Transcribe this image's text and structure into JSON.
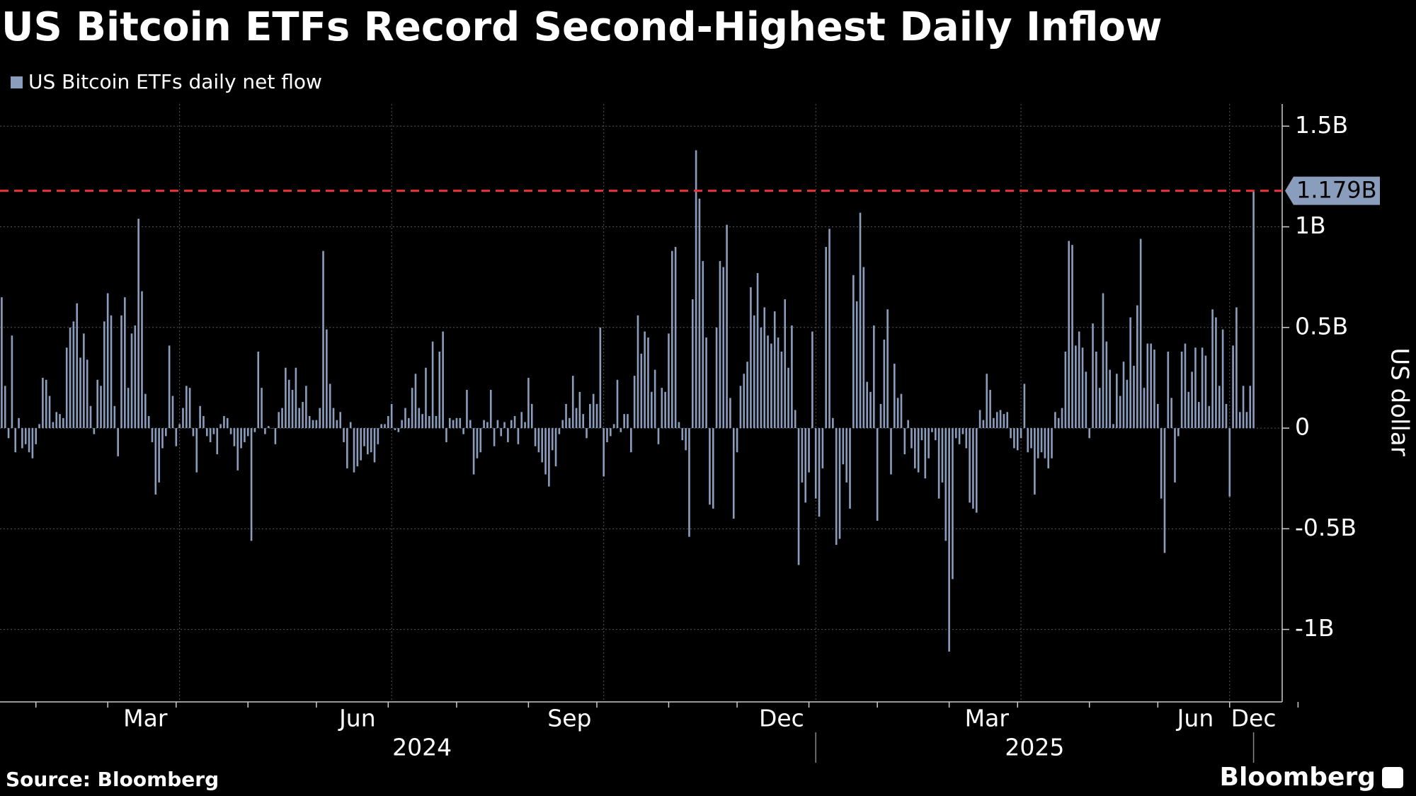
{
  "chart_data": {
    "type": "bar",
    "title": "US Bitcoin ETFs Record Second-Highest Daily Inflow",
    "series": [
      {
        "name": "US Bitcoin ETFs daily net flow",
        "color": "#8a9dbd",
        "values": [
          0.65,
          0.21,
          -0.05,
          0.46,
          -0.12,
          0.05,
          -0.1,
          -0.08,
          -0.12,
          -0.15,
          -0.08,
          0.02,
          0.25,
          0.24,
          0.16,
          0.03,
          0.08,
          0.07,
          0.05,
          0.4,
          0.5,
          0.53,
          0.62,
          0.35,
          0.47,
          0.34,
          0.11,
          -0.03,
          0.24,
          0.21,
          0.53,
          0.67,
          0.56,
          0.11,
          -0.14,
          0.56,
          0.65,
          0.2,
          0.47,
          0.51,
          1.04,
          0.68,
          0.17,
          0.06,
          -0.07,
          -0.33,
          -0.27,
          -0.1,
          -0.04,
          0.41,
          0.16,
          -0.09,
          0.02,
          0.1,
          0.21,
          0.2,
          -0.04,
          -0.22,
          0.11,
          0.06,
          -0.04,
          -0.07,
          -0.03,
          -0.13,
          0.02,
          0.06,
          0.05,
          -0.03,
          -0.09,
          -0.21,
          -0.1,
          -0.07,
          -0.04,
          -0.56,
          -0.02,
          0.38,
          0.2,
          -0.03,
          0.01,
          0,
          -0.08,
          0.08,
          0.1,
          0.3,
          0.24,
          0.19,
          0.3,
          0.1,
          0.13,
          0.21,
          0.06,
          0.04,
          0.04,
          0.1,
          0.88,
          0.49,
          0.22,
          0.1,
          0.04,
          0.08,
          -0.07,
          -0.2,
          0.03,
          -0.22,
          -0.19,
          -0.16,
          -0.09,
          -0.13,
          -0.12,
          -0.17,
          -0.08,
          0.02,
          0.02,
          0.06,
          0.12,
          -0.01,
          -0.02,
          0.04,
          0.1,
          0.05,
          0.2,
          0.27,
          0.1,
          0.07,
          0.3,
          0.06,
          0.43,
          0.06,
          0.38,
          0.48,
          -0.07,
          0.05,
          0.04,
          0.05,
          0.05,
          -0.03,
          0.19,
          0.04,
          -0.23,
          -0.15,
          -0.12,
          0.04,
          0.03,
          0.19,
          -0.09,
          0.04,
          -0.04,
          0.03,
          -0.07,
          0.04,
          0.06,
          -0.08,
          0.08,
          0.03,
          0.25,
          0.12,
          -0.09,
          -0.12,
          -0.17,
          -0.23,
          -0.29,
          -0.11,
          -0.19,
          -0.03,
          0.04,
          0.12,
          0.05,
          0.26,
          0.1,
          0.18,
          0.07,
          -0.05,
          0.12,
          0.17,
          0.12,
          0.5,
          -0.24,
          -0.07,
          -0.04,
          0.02,
          0.24,
          -0.02,
          0.07,
          0.07,
          -0.12,
          0.26,
          0.56,
          0.37,
          0.48,
          0.45,
          0.18,
          0.29,
          -0.08,
          0.2,
          0.18,
          0.47,
          0.88,
          0.9,
          0.03,
          -0.06,
          -0.11,
          -0.54,
          0.64,
          1.38,
          1.14,
          0.83,
          0.45,
          -0.38,
          -0.4,
          0.5,
          0.83,
          0.8,
          1.01,
          0.15,
          -0.45,
          -0.12,
          0.21,
          0.27,
          0.33,
          0.7,
          0.56,
          0.77,
          0.5,
          0.6,
          0.46,
          0.42,
          0.58,
          0.45,
          0.38,
          0.64,
          0.3,
          0.51,
          0.09,
          -0.68,
          -0.27,
          -0.37,
          -0.22,
          0.48,
          -0.35,
          -0.44,
          -0.2,
          0.9,
          0.99,
          0.05,
          -0.58,
          -0.55,
          -0.18,
          -0.27,
          -0.4,
          0.76,
          0.63,
          1.07,
          0.8,
          0.23,
          0.18,
          0.51,
          -0.46,
          0.12,
          0.44,
          0.59,
          -0.23,
          0.32,
          0.15,
          0.17,
          -0.13,
          0.04,
          -0.1,
          -0.2,
          -0.22,
          -0.06,
          -0.25,
          -0.15,
          -0.02,
          -0.06,
          -0.35,
          -0.27,
          -0.56,
          -1.11,
          -0.75,
          -0.05,
          -0.08,
          -0.03,
          -0.1,
          -0.37,
          -0.4,
          -0.42,
          0.09,
          0.04,
          0.27,
          0.19,
          0.05,
          0.08,
          0.09,
          0.07,
          0.08,
          -0.05,
          -0.1,
          -0.11,
          -0.05,
          0.22,
          -0.12,
          -0.1,
          -0.33,
          -0.15,
          -0.12,
          -0.15,
          -0.2,
          -0.15,
          0.08,
          0.05,
          0.1,
          0.38,
          0.93,
          0.91,
          0.41,
          0.48,
          0.4,
          0.28,
          -0.05,
          0.52,
          0.38,
          0.2,
          0.67,
          0.43,
          0.29,
          0.02,
          0.27,
          0.16,
          0.33,
          0.24,
          0.55,
          0.31,
          0.61,
          0.94,
          0.2,
          0.42,
          0.42,
          0.39,
          0.12,
          -0.35,
          -0.62,
          0.38,
          0.15,
          -0.27,
          -0.04,
          0.38,
          0.42,
          0.18,
          0.28,
          0.4,
          0.13,
          0.4,
          0.36,
          0.11,
          0.59,
          0.55,
          0.21,
          0.49,
          0.12,
          -0.34,
          0.41,
          0.6,
          0.08,
          0.21,
          0.08,
          0.21,
          1.179
        ]
      }
    ],
    "categories": [
      null,
      null,
      null,
      null,
      null,
      null,
      null,
      null,
      null,
      null,
      null,
      null,
      null,
      null,
      null,
      null,
      null,
      null,
      null,
      null,
      null,
      null,
      null,
      null,
      null,
      null,
      null,
      null,
      null,
      null,
      null,
      null,
      null,
      null,
      null,
      null,
      null,
      null,
      null,
      null,
      null,
      null,
      "Mar",
      null,
      null,
      null,
      null,
      null,
      null,
      null,
      null,
      null,
      null,
      null,
      null,
      null,
      null,
      null,
      null,
      null,
      null,
      null,
      null,
      null,
      null,
      null,
      null,
      null,
      null,
      null,
      null,
      null,
      null,
      null,
      null,
      null,
      null,
      null,
      null,
      null,
      null,
      null,
      null,
      null,
      null,
      null,
      null,
      null,
      null,
      null,
      null,
      null,
      null,
      null,
      null,
      null,
      null,
      null,
      null,
      null,
      null,
      null,
      null,
      null,
      "Jun",
      null,
      null,
      null,
      null,
      null,
      null,
      null,
      null,
      null,
      null,
      null,
      null,
      null,
      null,
      null,
      null,
      null,
      null,
      null,
      null,
      null,
      null,
      null,
      null,
      null,
      null,
      null,
      null,
      null,
      null,
      null,
      null,
      null,
      null,
      null,
      null,
      null,
      null,
      null,
      null,
      null,
      null,
      null,
      null,
      null,
      null,
      null,
      null,
      null,
      null,
      null,
      null,
      null,
      null,
      null,
      null,
      null,
      null,
      null,
      null,
      null,
      "Sep",
      null,
      null,
      null,
      null,
      null,
      null,
      null,
      null,
      null,
      null,
      null,
      null,
      null,
      null,
      null,
      null,
      null,
      null,
      null,
      null,
      null,
      null,
      null,
      null,
      null,
      null,
      null,
      null,
      null,
      null,
      null,
      null,
      null,
      null,
      null,
      null,
      null,
      null,
      null,
      null,
      null,
      null,
      null,
      null,
      null,
      null,
      null,
      null,
      null,
      null,
      null,
      null,
      null,
      null,
      null,
      null,
      null,
      null,
      null,
      null,
      null,
      "Dec",
      null,
      null,
      null,
      null,
      null,
      null,
      null,
      null,
      null,
      null,
      null,
      null,
      null,
      null,
      null,
      null,
      null,
      null,
      null,
      null,
      null,
      null,
      null,
      null,
      null,
      null,
      null,
      null,
      null,
      null,
      null,
      null,
      null,
      null,
      null,
      null,
      null,
      null,
      null,
      null,
      null,
      null,
      null,
      null,
      null,
      null,
      null,
      null,
      null,
      null,
      null,
      null,
      null,
      null,
      null,
      null,
      null,
      null,
      null,
      "Mar",
      null,
      null,
      null,
      null,
      null,
      null,
      null,
      null,
      null,
      null,
      null,
      null,
      null,
      null,
      null,
      null,
      null,
      null,
      null,
      null,
      null,
      null,
      null,
      null,
      null,
      null,
      null,
      null,
      null,
      null,
      null,
      null,
      null,
      null,
      null,
      null,
      null,
      null,
      null,
      null,
      null,
      null,
      null,
      null,
      null,
      null,
      null,
      null,
      null,
      null,
      null,
      null,
      null,
      null,
      null,
      null,
      null,
      null,
      null,
      null,
      "Jun",
      null,
      null,
      null,
      null,
      null,
      null,
      null,
      null,
      null,
      null,
      null,
      null,
      null,
      null,
      null,
      null,
      "Dec"
    ],
    "year_labels": [
      "2024",
      "2025"
    ],
    "ylim": [
      -1.36,
      1.61
    ],
    "yticks": [
      {
        "value": 1.5,
        "label": "1.5B"
      },
      {
        "value": 1,
        "label": "1B"
      },
      {
        "value": 0.5,
        "label": "0.5B"
      },
      0,
      {
        "value": -0.5,
        "label": "-0.5B"
      },
      {
        "value": -1,
        "label": "-1B"
      }
    ],
    "y_axis_label": "US dollar",
    "grid": true,
    "reference_line": {
      "value": 1.179,
      "label": "1.179B",
      "color": "#e8333c"
    },
    "source": "Source: Bloomberg",
    "brand": "Bloomberg"
  }
}
